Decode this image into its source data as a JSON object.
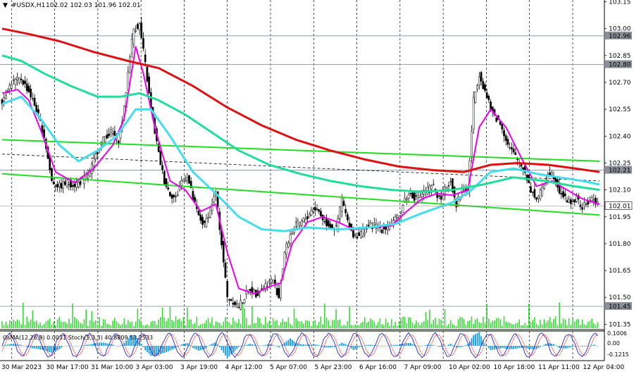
{
  "header": {
    "symbol": "#USDX,H1",
    "ohlc": "102.02 102.03 101.96 102.01"
  },
  "indicator_label": "OsMA(12,26,9) 0.0031  Stoch(5,3,3) 40.8809 53.2533",
  "colors": {
    "candle": "#000000",
    "grid": "#000000",
    "ma_fast": "#ee00ee",
    "ma_mid": "#44ddee",
    "ma_slow": "#22dd99",
    "ma_200": "#dd1111",
    "channel": "#22dd22",
    "volume": "#33dd33",
    "osma": "#1199ee",
    "stoch_main": "#2222cc",
    "stoch_signal": "#ee3333",
    "level_line": "#8899aa"
  },
  "chart_data": {
    "type": "candlestick",
    "title": "#USDX,H1",
    "ylim": [
      101.32,
      103.16
    ],
    "y_ticks": [
      103.15,
      103.0,
      102.85,
      102.7,
      102.55,
      102.4,
      102.25,
      102.1,
      101.95,
      101.8,
      101.65,
      101.5,
      101.35
    ],
    "y_tick_labels": [
      "103.15",
      "103.00",
      "102.85",
      "102.70",
      "102.55",
      "102.40",
      "102.25",
      "102.10",
      "101.95",
      "101.80",
      "101.65",
      "101.50",
      "101.35"
    ],
    "x_labels": [
      "30 Mar 2023",
      "30 Mar 17:00",
      "31 Mar 10:00",
      "3 Apr 03:00",
      "3 Apr 19:00",
      "4 Apr 12:00",
      "5 Apr 07:00",
      "5 Apr 23:00",
      "6 Apr 16:00",
      "7 Apr 09:00",
      "10 Apr 02:00",
      "10 Apr 18:00",
      "11 Apr 11:00",
      "12 Apr 04:00"
    ],
    "horizontal_levels": [
      {
        "value": 102.96,
        "label": "102.96"
      },
      {
        "value": 102.8,
        "label": "102.80"
      },
      {
        "value": 102.21,
        "label": "102.21"
      },
      {
        "value": 101.45,
        "label": "101.45"
      }
    ],
    "current_price": {
      "value": 102.01,
      "label": "102.01"
    },
    "price_path": [
      [
        0,
        102.6
      ],
      [
        5,
        102.7
      ],
      [
        10,
        102.72
      ],
      [
        14,
        102.65
      ],
      [
        18,
        102.55
      ],
      [
        22,
        102.4
      ],
      [
        26,
        102.15
      ],
      [
        30,
        102.12
      ],
      [
        34,
        102.14
      ],
      [
        38,
        102.13
      ],
      [
        42,
        102.15
      ],
      [
        46,
        102.2
      ],
      [
        50,
        102.32
      ],
      [
        54,
        102.4
      ],
      [
        57,
        102.42
      ],
      [
        61,
        102.38
      ],
      [
        64,
        102.55
      ],
      [
        67,
        102.86
      ],
      [
        69,
        103.0
      ],
      [
        72,
        103.02
      ],
      [
        75,
        102.8
      ],
      [
        78,
        102.55
      ],
      [
        82,
        102.3
      ],
      [
        85,
        102.15
      ],
      [
        88,
        102.08
      ],
      [
        91,
        102.05
      ],
      [
        94,
        102.15
      ],
      [
        97,
        102.18
      ],
      [
        100,
        102.05
      ],
      [
        103,
        101.95
      ],
      [
        106,
        101.9
      ],
      [
        109,
        102.0
      ],
      [
        112,
        102.08
      ],
      [
        115,
        101.8
      ],
      [
        118,
        101.5
      ],
      [
        121,
        101.48
      ],
      [
        124,
        101.45
      ],
      [
        127,
        101.5
      ],
      [
        130,
        101.55
      ],
      [
        133,
        101.52
      ],
      [
        136,
        101.55
      ],
      [
        139,
        101.58
      ],
      [
        142,
        101.6
      ],
      [
        145,
        101.5
      ],
      [
        148,
        101.75
      ],
      [
        151,
        101.85
      ],
      [
        154,
        101.9
      ],
      [
        157,
        101.92
      ],
      [
        160,
        101.95
      ],
      [
        163,
        102.0
      ],
      [
        166,
        101.98
      ],
      [
        169,
        101.92
      ],
      [
        172,
        101.9
      ],
      [
        175,
        101.88
      ],
      [
        178,
        102.05
      ],
      [
        181,
        101.92
      ],
      [
        184,
        101.85
      ],
      [
        187,
        101.85
      ],
      [
        190,
        101.88
      ],
      [
        193,
        101.9
      ],
      [
        196,
        101.9
      ],
      [
        199,
        101.88
      ],
      [
        202,
        101.9
      ],
      [
        205,
        101.92
      ],
      [
        208,
        101.95
      ],
      [
        211,
        102.05
      ],
      [
        214,
        102.08
      ],
      [
        217,
        102.05
      ],
      [
        220,
        102.08
      ],
      [
        223,
        102.1
      ],
      [
        226,
        102.12
      ],
      [
        229,
        102.05
      ],
      [
        232,
        102.1
      ],
      [
        235,
        102.15
      ],
      [
        238,
        102.02
      ],
      [
        241,
        102.1
      ],
      [
        244,
        102.1
      ],
      [
        247,
        102.6
      ],
      [
        250,
        102.75
      ],
      [
        253,
        102.65
      ],
      [
        256,
        102.55
      ],
      [
        259,
        102.5
      ],
      [
        262,
        102.45
      ],
      [
        265,
        102.35
      ],
      [
        268,
        102.3
      ],
      [
        271,
        102.25
      ],
      [
        274,
        102.2
      ],
      [
        277,
        102.1
      ],
      [
        280,
        102.05
      ],
      [
        283,
        102.1
      ],
      [
        286,
        102.2
      ],
      [
        289,
        102.18
      ],
      [
        292,
        102.1
      ],
      [
        295,
        102.05
      ],
      [
        298,
        102.03
      ],
      [
        301,
        102.05
      ],
      [
        304,
        102.0
      ],
      [
        307,
        102.03
      ],
      [
        310,
        102.05
      ],
      [
        313,
        102.01
      ]
    ],
    "series": [
      {
        "kind": "moving_average",
        "points": [
          [
            0,
            102.64
          ],
          [
            8,
            102.66
          ],
          [
            14,
            102.6
          ],
          [
            20,
            102.44
          ],
          [
            28,
            102.2
          ],
          [
            38,
            102.14
          ],
          [
            48,
            102.22
          ],
          [
            58,
            102.35
          ],
          [
            64,
            102.5
          ],
          [
            70,
            102.9
          ],
          [
            74,
            102.75
          ],
          [
            80,
            102.45
          ],
          [
            88,
            102.15
          ],
          [
            96,
            102.1
          ],
          [
            104,
            101.98
          ],
          [
            112,
            102.02
          ],
          [
            118,
            101.75
          ],
          [
            124,
            101.55
          ],
          [
            132,
            101.52
          ],
          [
            140,
            101.56
          ],
          [
            146,
            101.58
          ],
          [
            152,
            101.8
          ],
          [
            160,
            101.92
          ],
          [
            168,
            101.95
          ],
          [
            176,
            101.92
          ],
          [
            184,
            101.88
          ],
          [
            194,
            101.89
          ],
          [
            204,
            101.9
          ],
          [
            212,
            101.98
          ],
          [
            220,
            102.05
          ],
          [
            228,
            102.08
          ],
          [
            236,
            102.07
          ],
          [
            244,
            102.1
          ],
          [
            250,
            102.45
          ],
          [
            256,
            102.55
          ],
          [
            264,
            102.45
          ],
          [
            272,
            102.28
          ],
          [
            280,
            102.12
          ],
          [
            288,
            102.15
          ],
          [
            296,
            102.1
          ],
          [
            304,
            102.05
          ],
          [
            313,
            102.02
          ]
        ]
      },
      {
        "kind": "moving_average",
        "points": [
          [
            0,
            102.58
          ],
          [
            10,
            102.62
          ],
          [
            20,
            102.5
          ],
          [
            30,
            102.35
          ],
          [
            40,
            102.26
          ],
          [
            50,
            102.32
          ],
          [
            60,
            102.4
          ],
          [
            70,
            102.55
          ],
          [
            78,
            102.55
          ],
          [
            88,
            102.4
          ],
          [
            100,
            102.2
          ],
          [
            112,
            102.08
          ],
          [
            124,
            101.95
          ],
          [
            136,
            101.88
          ],
          [
            148,
            101.87
          ],
          [
            160,
            101.89
          ],
          [
            176,
            101.88
          ],
          [
            192,
            101.89
          ],
          [
            206,
            101.91
          ],
          [
            220,
            101.97
          ],
          [
            236,
            102.03
          ],
          [
            246,
            102.1
          ],
          [
            256,
            102.2
          ],
          [
            268,
            102.22
          ],
          [
            280,
            102.19
          ],
          [
            292,
            102.17
          ],
          [
            304,
            102.15
          ],
          [
            313,
            102.13
          ]
        ]
      },
      {
        "kind": "moving_average",
        "points": [
          [
            0,
            102.85
          ],
          [
            10,
            102.82
          ],
          [
            22,
            102.75
          ],
          [
            36,
            102.68
          ],
          [
            50,
            102.62
          ],
          [
            62,
            102.62
          ],
          [
            72,
            102.64
          ],
          [
            82,
            102.6
          ],
          [
            96,
            102.52
          ],
          [
            110,
            102.42
          ],
          [
            124,
            102.32
          ],
          [
            140,
            102.24
          ],
          [
            156,
            102.19
          ],
          [
            172,
            102.15
          ],
          [
            188,
            102.12
          ],
          [
            204,
            102.1
          ],
          [
            220,
            102.09
          ],
          [
            236,
            102.1
          ],
          [
            252,
            102.13
          ],
          [
            268,
            102.17
          ],
          [
            284,
            102.15
          ],
          [
            300,
            102.12
          ],
          [
            313,
            102.1
          ]
        ]
      },
      {
        "kind": "moving_average",
        "points": [
          [
            0,
            103.0
          ],
          [
            14,
            102.97
          ],
          [
            30,
            102.93
          ],
          [
            48,
            102.87
          ],
          [
            66,
            102.82
          ],
          [
            82,
            102.78
          ],
          [
            100,
            102.68
          ],
          [
            118,
            102.56
          ],
          [
            136,
            102.46
          ],
          [
            154,
            102.38
          ],
          [
            172,
            102.32
          ],
          [
            190,
            102.27
          ],
          [
            208,
            102.23
          ],
          [
            226,
            102.21
          ],
          [
            242,
            102.2
          ],
          [
            256,
            102.24
          ],
          [
            270,
            102.25
          ],
          [
            286,
            102.24
          ],
          [
            300,
            102.22
          ],
          [
            313,
            102.2
          ]
        ]
      }
    ],
    "channel_lines": [
      {
        "from": [
          0,
          102.38
        ],
        "to": [
          313,
          102.26
        ]
      },
      {
        "from": [
          0,
          102.19
        ],
        "to": [
          313,
          101.96
        ]
      }
    ],
    "dashed_line": {
      "from": [
        0,
        102.3
      ],
      "to": [
        313,
        102.15
      ]
    },
    "oscillator": {
      "ylim": [
        -0.125,
        0.125
      ],
      "tick_labels": [
        "0.1006",
        "0.00",
        "-0.1215"
      ],
      "tick_values": [
        0.1006,
        0.0,
        -0.1215
      ]
    }
  }
}
